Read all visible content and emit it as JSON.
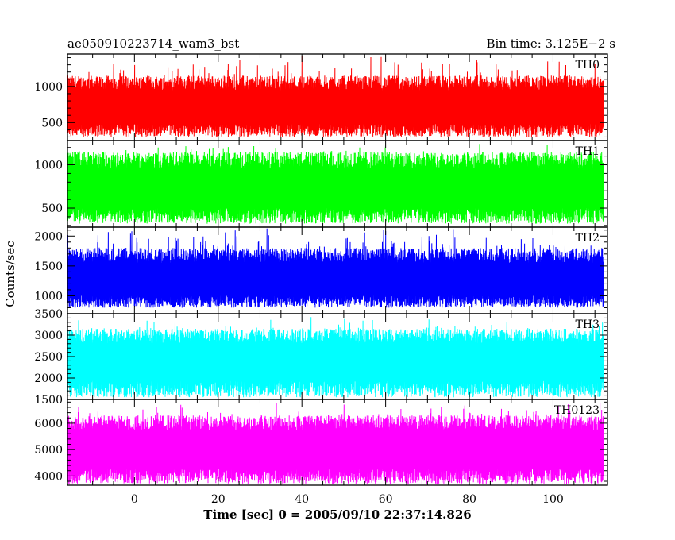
{
  "header": {
    "title": "ae050910223714_wam3_bst",
    "bin_time": "Bin time: 3.125E−2 s"
  },
  "chart_data": {
    "type": "line",
    "xlabel": "Time [sec] 0 = 2005/09/10 22:37:14.826",
    "ylabel": "Counts/sec",
    "xlim": [
      -16,
      113
    ],
    "x_ticks": [
      0,
      20,
      40,
      60,
      80,
      100
    ],
    "x_data_range": [
      -16,
      112
    ],
    "grid": false,
    "panels": [
      {
        "name": "TH0",
        "color": "#ff0000",
        "ylim": [
          250,
          1450
        ],
        "y_ticks": [
          500,
          1000
        ],
        "y_minor_step": 100,
        "stats": {
          "mean": 700,
          "low": 300,
          "high": 1450,
          "typical_high": 1150
        }
      },
      {
        "name": "TH1",
        "color": "#00ff00",
        "ylim": [
          280,
          1280
        ],
        "y_ticks": [
          500,
          1000
        ],
        "y_minor_step": 100,
        "stats": {
          "mean": 720,
          "low": 320,
          "high": 1250,
          "typical_high": 1150
        }
      },
      {
        "name": "TH2",
        "color": "#0000ff",
        "ylim": [
          700,
          2150
        ],
        "y_ticks": [
          1000,
          1500,
          2000
        ],
        "y_minor_step": 100,
        "stats": {
          "mean": 1250,
          "low": 800,
          "high": 2150,
          "typical_high": 1800
        }
      },
      {
        "name": "TH3",
        "color": "#00ffff",
        "ylim": [
          1500,
          3500
        ],
        "y_ticks": [
          1500,
          2000,
          2500,
          3000,
          3500
        ],
        "y_minor_step": 100,
        "stats": {
          "mean": 2400,
          "low": 1550,
          "high": 3450,
          "typical_high": 3150
        }
      },
      {
        "name": "TH0123",
        "color": "#ff00ff",
        "ylim": [
          3650,
          6900
        ],
        "y_ticks": [
          4000,
          5000,
          6000
        ],
        "y_minor_step": 200,
        "stats": {
          "mean": 5000,
          "low": 3700,
          "high": 6800,
          "typical_high": 6300
        }
      }
    ]
  }
}
